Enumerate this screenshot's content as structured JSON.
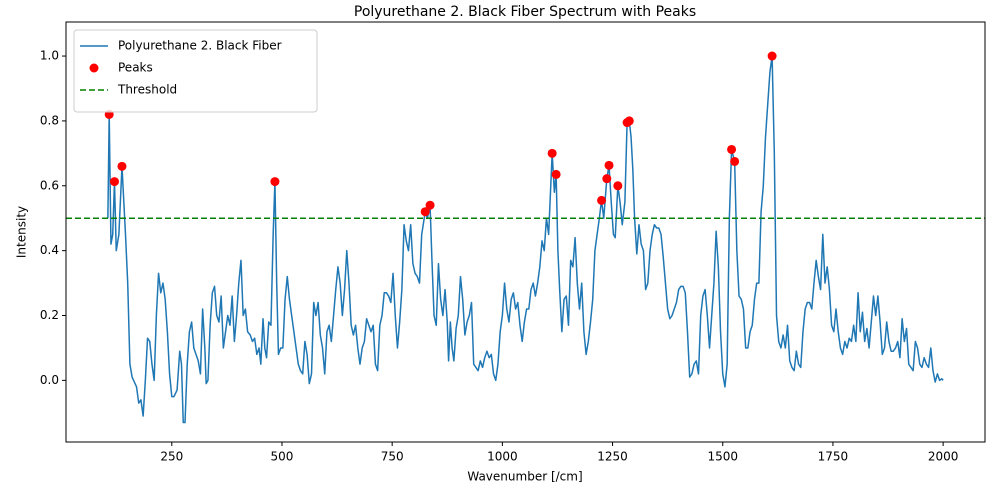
{
  "chart_data": {
    "type": "line",
    "title": "Polyurethane 2. Black Fiber Spectrum with Peaks",
    "xlabel": "Wavenumber [/cm]",
    "ylabel": "Intensity",
    "xlim": [
      10,
      2095
    ],
    "ylim": [
      -0.19,
      1.105
    ],
    "xticks": [
      250,
      500,
      750,
      1000,
      1250,
      1500,
      1750,
      2000
    ],
    "yticks": [
      {
        "value": 0,
        "label": "0.0"
      },
      0.2,
      0.4,
      0.6,
      0.8,
      {
        "value": 1,
        "label": "1.0"
      }
    ],
    "legend": "upper left",
    "series": [
      {
        "name": "Polyurethane 2. Black Fiber",
        "type": "line",
        "color": "#1f77b4",
        "x": [
          105,
          108,
          112,
          116,
          120,
          124,
          130,
          137,
          145,
          150,
          155,
          160,
          170,
          175,
          180,
          185,
          190,
          195,
          200,
          205,
          210,
          215,
          220,
          225,
          230,
          235,
          240,
          245,
          250,
          255,
          262,
          268,
          272,
          276,
          280,
          285,
          290,
          295,
          300,
          305,
          310,
          315,
          320,
          325,
          328,
          332,
          337,
          342,
          347,
          352,
          357,
          362,
          367,
          372,
          377,
          382,
          387,
          392,
          397,
          402,
          407,
          412,
          417,
          422,
          428,
          433,
          438,
          443,
          448,
          452,
          457,
          461,
          465,
          470,
          475,
          480,
          484,
          488,
          492,
          497,
          502,
          507,
          512,
          517,
          522,
          527,
          532,
          537,
          542,
          547,
          552,
          557,
          562,
          567,
          572,
          577,
          582,
          587,
          592,
          597,
          602,
          607,
          612,
          617,
          622,
          627,
          632,
          637,
          642,
          647,
          652,
          657,
          662,
          667,
          672,
          677,
          682,
          687,
          692,
          697,
          702,
          707,
          712,
          717,
          722,
          727,
          732,
          737,
          742,
          747,
          752,
          757,
          762,
          767,
          772,
          777,
          782,
          787,
          792,
          797,
          802,
          807,
          812,
          817,
          825,
          830,
          836,
          840,
          845,
          850,
          855,
          860,
          865,
          870,
          875,
          878,
          882,
          886,
          890,
          895,
          900,
          905,
          910,
          915,
          920,
          925,
          930,
          935,
          940,
          945,
          950,
          955,
          960,
          965,
          970,
          975,
          980,
          985,
          990,
          995,
          1000,
          1005,
          1010,
          1015,
          1020,
          1025,
          1030,
          1035,
          1040,
          1045,
          1050,
          1055,
          1060,
          1065,
          1070,
          1075,
          1080,
          1085,
          1090,
          1095,
          1100,
          1105,
          1113,
          1118,
          1122,
          1126,
          1130,
          1135,
          1140,
          1145,
          1150,
          1155,
          1160,
          1165,
          1170,
          1175,
          1180,
          1185,
          1190,
          1195,
          1200,
          1205,
          1210,
          1215,
          1220,
          1225,
          1230,
          1237,
          1242,
          1247,
          1252,
          1256,
          1262,
          1267,
          1272,
          1278,
          1283,
          1288,
          1292,
          1296,
          1300,
          1305,
          1310,
          1315,
          1320,
          1325,
          1330,
          1335,
          1340,
          1345,
          1350,
          1355,
          1360,
          1365,
          1370,
          1375,
          1380,
          1385,
          1390,
          1395,
          1400,
          1405,
          1410,
          1415,
          1420,
          1425,
          1430,
          1435,
          1440,
          1445,
          1450,
          1455,
          1460,
          1465,
          1470,
          1475,
          1480,
          1485,
          1490,
          1495,
          1500,
          1505,
          1510,
          1515,
          1520,
          1527,
          1532,
          1537,
          1542,
          1547,
          1552,
          1557,
          1562,
          1567,
          1572,
          1577,
          1582,
          1587,
          1592,
          1597,
          1602,
          1607,
          1612,
          1617,
          1622,
          1627,
          1632,
          1637,
          1642,
          1647,
          1652,
          1657,
          1662,
          1667,
          1672,
          1677,
          1682,
          1687,
          1692,
          1697,
          1702,
          1707,
          1712,
          1717,
          1722,
          1727,
          1732,
          1737,
          1742,
          1747,
          1752,
          1757,
          1762,
          1767,
          1772,
          1777,
          1782,
          1787,
          1792,
          1797,
          1802,
          1807,
          1812,
          1817,
          1822,
          1827,
          1832,
          1837,
          1842,
          1847,
          1852,
          1857,
          1862,
          1867,
          1872,
          1877,
          1882,
          1887,
          1892,
          1897,
          1902,
          1907,
          1912,
          1917,
          1922,
          1927,
          1932,
          1937,
          1942,
          1947,
          1952,
          1957,
          1962,
          1967,
          1972,
          1977,
          1982,
          1987,
          1992,
          1997,
          2000
        ],
        "values": [
          0.5,
          0.82,
          0.42,
          0.45,
          0.613,
          0.4,
          0.45,
          0.66,
          0.45,
          0.3,
          0.05,
          0.01,
          -0.02,
          -0.07,
          -0.06,
          -0.11,
          0.0,
          0.13,
          0.12,
          0.05,
          0.0,
          0.2,
          0.33,
          0.27,
          0.3,
          0.25,
          0.15,
          0.02,
          -0.05,
          -0.05,
          -0.03,
          0.09,
          0.05,
          -0.13,
          -0.13,
          0.05,
          0.15,
          0.18,
          0.1,
          0.08,
          0.06,
          0.02,
          0.22,
          0.1,
          -0.01,
          0.0,
          0.17,
          0.27,
          0.29,
          0.2,
          0.18,
          0.26,
          0.1,
          0.15,
          0.2,
          0.17,
          0.26,
          0.12,
          0.2,
          0.3,
          0.37,
          0.2,
          0.22,
          0.15,
          0.14,
          0.12,
          0.13,
          0.08,
          0.1,
          0.05,
          0.19,
          0.1,
          0.07,
          0.18,
          0.17,
          0.45,
          0.613,
          0.3,
          0.08,
          0.1,
          0.1,
          0.25,
          0.32,
          0.25,
          0.2,
          0.15,
          0.1,
          0.05,
          0.03,
          0.02,
          0.12,
          0.08,
          -0.01,
          0.02,
          0.24,
          0.2,
          0.24,
          0.14,
          0.1,
          0.02,
          0.15,
          0.17,
          0.12,
          0.2,
          0.28,
          0.35,
          0.3,
          0.2,
          0.28,
          0.4,
          0.3,
          0.17,
          0.14,
          0.17,
          0.1,
          0.05,
          0.1,
          0.12,
          0.19,
          0.17,
          0.15,
          0.17,
          0.05,
          0.03,
          0.17,
          0.2,
          0.27,
          0.27,
          0.26,
          0.24,
          0.33,
          0.2,
          0.1,
          0.18,
          0.28,
          0.48,
          0.43,
          0.4,
          0.48,
          0.36,
          0.33,
          0.32,
          0.3,
          0.45,
          0.52,
          0.5,
          0.54,
          0.38,
          0.2,
          0.17,
          0.36,
          0.25,
          0.2,
          0.28,
          0.18,
          0.06,
          0.18,
          0.1,
          0.06,
          0.16,
          0.2,
          0.32,
          0.25,
          0.14,
          0.18,
          0.2,
          0.24,
          0.05,
          0.04,
          0.03,
          0.06,
          0.04,
          0.07,
          0.09,
          0.07,
          0.08,
          0.02,
          0.0,
          0.05,
          0.15,
          0.2,
          0.3,
          0.22,
          0.18,
          0.25,
          0.27,
          0.22,
          0.24,
          0.17,
          0.12,
          0.18,
          0.22,
          0.22,
          0.28,
          0.3,
          0.26,
          0.3,
          0.35,
          0.43,
          0.4,
          0.5,
          0.45,
          0.7,
          0.58,
          0.635,
          0.4,
          0.28,
          0.15,
          0.25,
          0.26,
          0.17,
          0.37,
          0.35,
          0.44,
          0.3,
          0.22,
          0.3,
          0.15,
          0.08,
          0.12,
          0.18,
          0.25,
          0.4,
          0.45,
          0.5,
          0.555,
          0.5,
          0.622,
          0.663,
          0.55,
          0.45,
          0.44,
          0.6,
          0.55,
          0.48,
          0.55,
          0.795,
          0.8,
          0.75,
          0.65,
          0.5,
          0.39,
          0.48,
          0.42,
          0.4,
          0.28,
          0.3,
          0.4,
          0.45,
          0.48,
          0.47,
          0.47,
          0.45,
          0.38,
          0.3,
          0.22,
          0.19,
          0.2,
          0.22,
          0.24,
          0.28,
          0.29,
          0.29,
          0.27,
          0.15,
          0.01,
          0.02,
          0.05,
          0.06,
          0.02,
          0.2,
          0.26,
          0.28,
          0.2,
          0.1,
          0.2,
          0.3,
          0.46,
          0.35,
          0.15,
          0.02,
          -0.02,
          0.05,
          0.5,
          0.712,
          0.675,
          0.4,
          0.26,
          0.25,
          0.22,
          0.1,
          0.1,
          0.15,
          0.17,
          0.25,
          0.3,
          0.3,
          0.52,
          0.6,
          0.75,
          0.85,
          0.95,
          1.0,
          0.7,
          0.2,
          0.12,
          0.1,
          0.14,
          0.1,
          0.17,
          0.06,
          0.04,
          0.03,
          0.09,
          0.05,
          0.04,
          0.15,
          0.22,
          0.24,
          0.24,
          0.22,
          0.3,
          0.37,
          0.32,
          0.28,
          0.45,
          0.3,
          0.35,
          0.28,
          0.17,
          0.15,
          0.22,
          0.15,
          0.1,
          0.08,
          0.12,
          0.1,
          0.13,
          0.12,
          0.17,
          0.12,
          0.27,
          0.15,
          0.21,
          0.12,
          0.16,
          0.1,
          0.18,
          0.26,
          0.2,
          0.26,
          0.18,
          0.08,
          0.1,
          0.18,
          0.12,
          0.09,
          0.09,
          0.1,
          0.12,
          0.07,
          0.19,
          0.12,
          0.16,
          0.05,
          0.04,
          0.03,
          0.12,
          0.1,
          0.05,
          0.04,
          0.07,
          0.05,
          0.04,
          0.1,
          0.03,
          -0.005,
          0.02,
          0.0,
          0.005,
          0.0
        ]
      },
      {
        "name": "Peaks",
        "type": "scatter",
        "color": "#ff0000",
        "x": [
          108,
          120,
          137,
          484,
          825,
          836,
          1113,
          1122,
          1225,
          1237,
          1242,
          1262,
          1283,
          1288,
          1520,
          1527,
          1612
        ],
        "values": [
          0.82,
          0.613,
          0.66,
          0.613,
          0.52,
          0.54,
          0.7,
          0.635,
          0.555,
          0.622,
          0.663,
          0.6,
          0.795,
          0.8,
          0.712,
          0.675,
          1.0
        ]
      },
      {
        "name": "Threshold",
        "type": "hline",
        "color": "#008000",
        "value": 0.5
      }
    ]
  }
}
